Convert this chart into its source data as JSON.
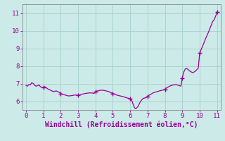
{
  "xlabel": "Windchill (Refroidissement éolien,°C)",
  "ylabel": "",
  "bg_color": "#cceae7",
  "grid_color": "#aad4d0",
  "line_color": "#990099",
  "marker_color": "#990099",
  "spine_color": "#888888",
  "xlim": [
    -0.2,
    11.2
  ],
  "ylim": [
    5.5,
    11.5
  ],
  "xticks": [
    0,
    1,
    2,
    3,
    4,
    5,
    6,
    7,
    8,
    9,
    10,
    11
  ],
  "yticks": [
    6,
    7,
    8,
    9,
    10,
    11
  ],
  "x": [
    0.0,
    0.08,
    0.17,
    0.25,
    0.33,
    0.42,
    0.5,
    0.58,
    0.67,
    0.75,
    0.83,
    0.92,
    1.0,
    1.08,
    1.17,
    1.25,
    1.33,
    1.42,
    1.5,
    1.58,
    1.67,
    1.75,
    1.83,
    1.92,
    2.0,
    2.08,
    2.17,
    2.25,
    2.33,
    2.42,
    2.5,
    2.58,
    2.67,
    2.75,
    2.83,
    2.92,
    3.0,
    3.08,
    3.17,
    3.25,
    3.33,
    3.42,
    3.5,
    3.58,
    3.67,
    3.75,
    3.83,
    3.92,
    4.0,
    4.08,
    4.17,
    4.25,
    4.33,
    4.42,
    4.5,
    4.58,
    4.67,
    4.75,
    4.83,
    4.92,
    5.0,
    5.08,
    5.17,
    5.25,
    5.33,
    5.42,
    5.5,
    5.58,
    5.67,
    5.75,
    5.83,
    5.92,
    6.0,
    6.08,
    6.17,
    6.25,
    6.33,
    6.42,
    6.5,
    6.58,
    6.67,
    6.75,
    6.83,
    6.92,
    7.0,
    7.08,
    7.17,
    7.25,
    7.33,
    7.42,
    7.5,
    7.58,
    7.67,
    7.75,
    7.83,
    7.92,
    8.0,
    8.08,
    8.17,
    8.25,
    8.33,
    8.42,
    8.5,
    8.58,
    8.67,
    8.75,
    8.83,
    8.92,
    9.0,
    9.08,
    9.17,
    9.25,
    9.33,
    9.42,
    9.5,
    9.58,
    9.67,
    9.75,
    9.83,
    9.92,
    10.0,
    10.08,
    10.17,
    10.25,
    10.33,
    10.42,
    10.5,
    10.58,
    10.67,
    10.75,
    10.83,
    10.92,
    11.0
  ],
  "y": [
    6.9,
    6.85,
    6.95,
    6.92,
    7.05,
    7.0,
    6.9,
    6.85,
    6.88,
    6.92,
    6.82,
    6.78,
    6.8,
    6.82,
    6.76,
    6.7,
    6.66,
    6.62,
    6.58,
    6.54,
    6.57,
    6.58,
    6.54,
    6.5,
    6.44,
    6.4,
    6.37,
    6.35,
    6.33,
    6.3,
    6.3,
    6.31,
    6.32,
    6.34,
    6.35,
    6.34,
    6.33,
    6.35,
    6.37,
    6.4,
    6.42,
    6.44,
    6.45,
    6.46,
    6.47,
    6.47,
    6.46,
    6.44,
    6.54,
    6.57,
    6.59,
    6.61,
    6.62,
    6.62,
    6.61,
    6.59,
    6.57,
    6.55,
    6.51,
    6.47,
    6.44,
    6.41,
    6.37,
    6.34,
    6.32,
    6.3,
    6.28,
    6.26,
    6.23,
    6.2,
    6.18,
    6.16,
    6.13,
    6.08,
    5.82,
    5.62,
    5.58,
    5.66,
    5.8,
    5.96,
    6.08,
    6.16,
    6.18,
    6.2,
    6.28,
    6.33,
    6.38,
    6.43,
    6.48,
    6.5,
    6.53,
    6.55,
    6.58,
    6.6,
    6.62,
    6.64,
    6.68,
    6.74,
    6.79,
    6.84,
    6.88,
    6.9,
    6.93,
    6.94,
    6.93,
    6.91,
    6.88,
    6.85,
    7.32,
    7.65,
    7.82,
    7.86,
    7.8,
    7.72,
    7.67,
    7.62,
    7.65,
    7.7,
    7.78,
    7.88,
    8.72,
    8.92,
    9.12,
    9.32,
    9.52,
    9.72,
    9.9,
    10.1,
    10.32,
    10.52,
    10.62,
    10.82,
    11.05
  ],
  "marker_x": [
    1.0,
    2.0,
    3.0,
    4.0,
    5.0,
    6.0,
    7.0,
    8.0,
    9.0,
    10.0,
    11.0
  ],
  "marker_y": [
    6.8,
    6.44,
    6.33,
    6.54,
    6.44,
    6.13,
    6.28,
    6.68,
    7.32,
    8.72,
    11.05
  ],
  "tick_fontsize": 6.5,
  "xlabel_fontsize": 7
}
